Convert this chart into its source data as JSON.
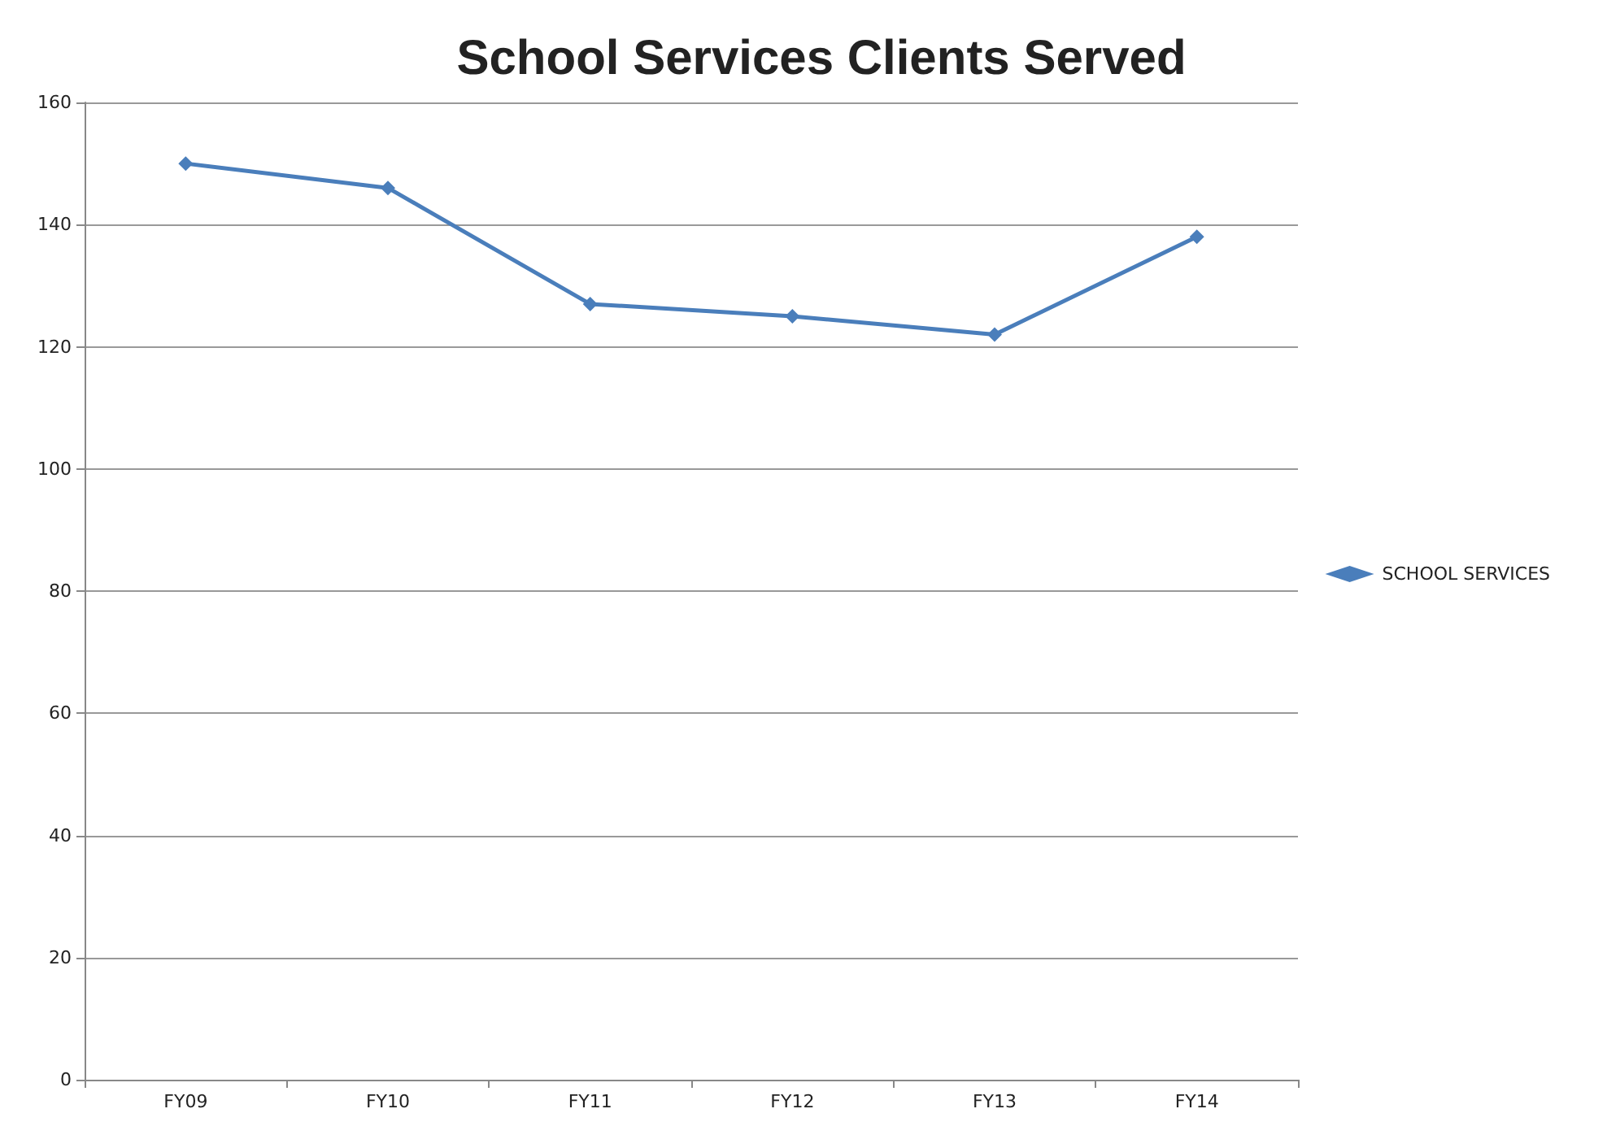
{
  "chart_data": {
    "type": "line",
    "title": "School Services Clients Served",
    "categories": [
      "FY09",
      "FY10",
      "FY11",
      "FY12",
      "FY13",
      "FY14"
    ],
    "series": [
      {
        "name": "SCHOOL SERVICES",
        "color": "#4a7ebb",
        "values": [
          150,
          146,
          127,
          125,
          122,
          138
        ]
      }
    ],
    "ylim": [
      0,
      160
    ],
    "yticks": [
      0,
      20,
      40,
      60,
      80,
      100,
      120,
      140,
      160
    ],
    "grid": "y",
    "legend": "right",
    "marker": "diamond",
    "line_style": "solid"
  }
}
